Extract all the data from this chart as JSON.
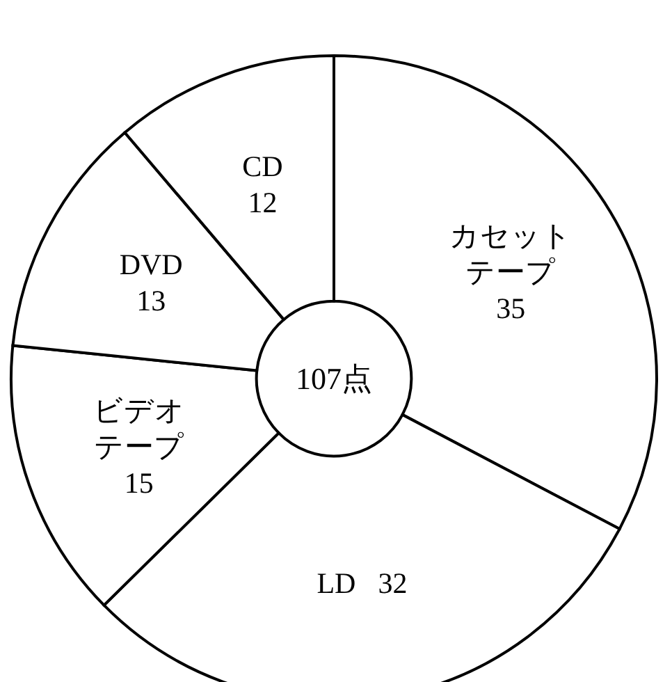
{
  "chart_data": {
    "type": "donut",
    "title": "107点",
    "categories": [
      "カセットテープ",
      "LD",
      "ビデオテープ",
      "DVD",
      "CD"
    ],
    "values": [
      35,
      32,
      15,
      13,
      12
    ],
    "colors": [
      "#ffffff",
      "#ffffff",
      "#ffffff",
      "#ffffff",
      "#ffffff"
    ],
    "data_labels": true,
    "legend": false
  }
}
